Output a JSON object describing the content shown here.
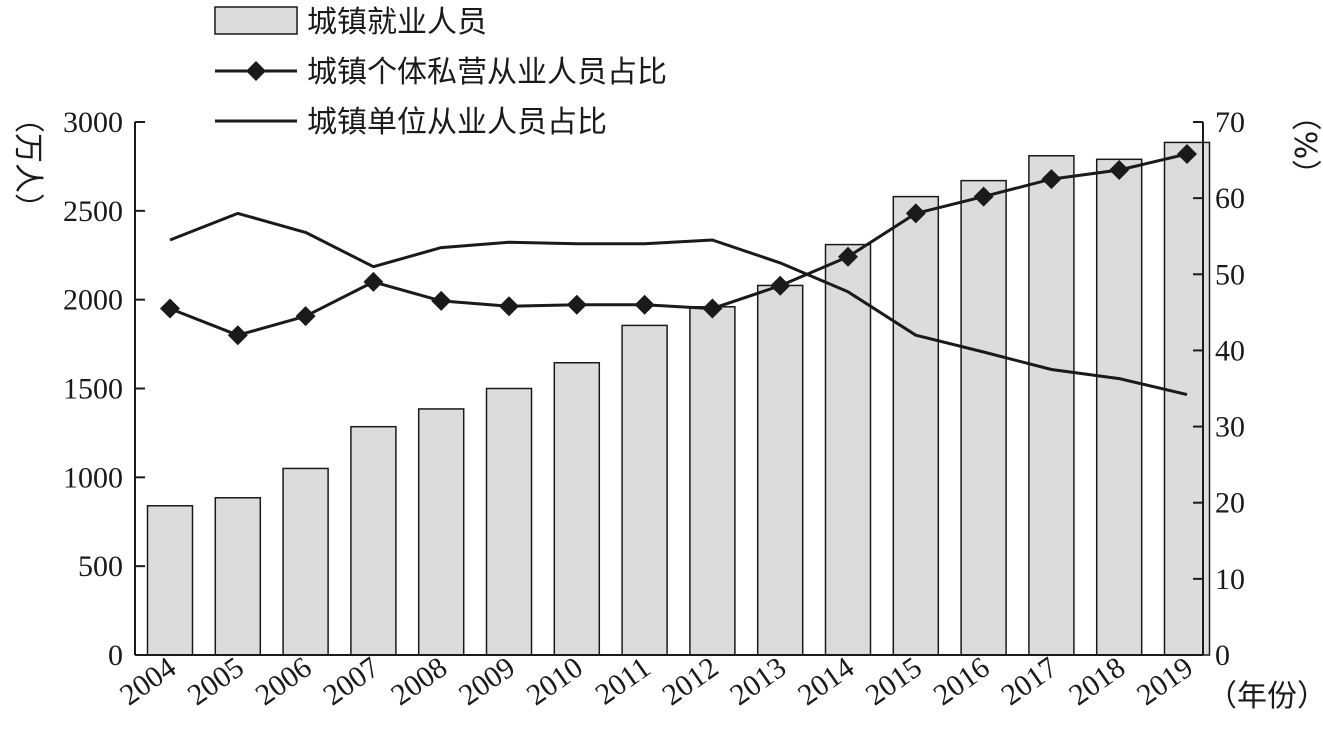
{
  "chart_data": {
    "type": "bar",
    "categories": [
      "2004",
      "2005",
      "2006",
      "2007",
      "2008",
      "2009",
      "2010",
      "2011",
      "2012",
      "2013",
      "2014",
      "2015",
      "2016",
      "2017",
      "2018",
      "2019"
    ],
    "series": [
      {
        "name": "城镇就业人员",
        "type": "bar",
        "axis": "left",
        "values": [
          840,
          885,
          1050,
          1285,
          1385,
          1500,
          1645,
          1855,
          1960,
          2080,
          2310,
          2580,
          2670,
          2810,
          2790,
          2885
        ]
      },
      {
        "name": "城镇个体私营从业人员占比",
        "type": "line",
        "marker": "diamond",
        "axis": "right",
        "values": [
          45.5,
          42.0,
          44.5,
          49.0,
          46.5,
          45.8,
          46.0,
          46.0,
          45.5,
          48.5,
          52.3,
          58.0,
          60.2,
          62.5,
          63.7,
          65.8
        ]
      },
      {
        "name": "城镇单位从业人员占比",
        "type": "line",
        "marker": "none",
        "axis": "right",
        "values": [
          54.5,
          58.0,
          55.5,
          51.0,
          53.5,
          54.2,
          54.0,
          54.0,
          54.5,
          51.5,
          47.7,
          42.0,
          39.8,
          37.5,
          36.3,
          34.2
        ]
      }
    ],
    "y_left": {
      "label": "（万人）",
      "range": [
        0,
        3000
      ],
      "ticks": [
        "0",
        "500",
        "1000",
        "1500",
        "2000",
        "2500",
        "3000"
      ]
    },
    "y_right": {
      "label": "（%）",
      "range": [
        0,
        70
      ],
      "ticks": [
        "0",
        "10",
        "20",
        "30",
        "40",
        "50",
        "60",
        "70"
      ]
    },
    "x_unit": "（年份）",
    "legend_position": "top-left",
    "grid": false,
    "colors": {
      "bar_fill": "#dcdcdc",
      "bar_stroke": "#1a1a1a",
      "line": "#1a1a1a",
      "marker": "#1a1a1a"
    }
  }
}
